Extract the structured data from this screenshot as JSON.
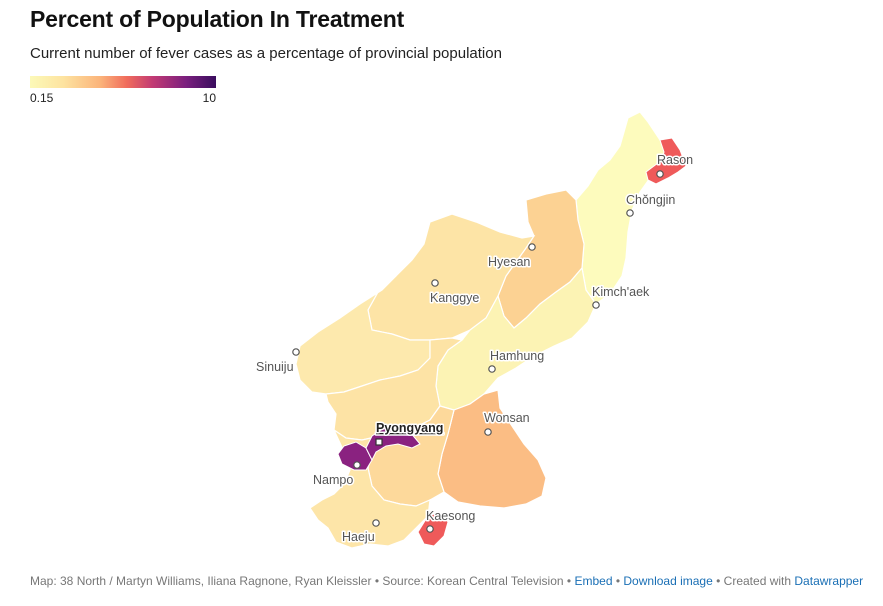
{
  "title": "Percent of Population In Treatment",
  "subtitle": "Current number of fever cases as a percentage of provincial population",
  "legend": {
    "min_label": "0.15",
    "max_label": "10",
    "colors": [
      "#fcf9b8",
      "#fde3a0",
      "#fbb37a",
      "#f06c5c",
      "#c23a74",
      "#7a1f7e",
      "#3a0d5e"
    ]
  },
  "regions": [
    {
      "id": "north-hamgyong",
      "color": "#fdfbbd"
    },
    {
      "id": "ryanggang",
      "color": "#fcd293"
    },
    {
      "id": "chagang",
      "color": "#fde4a6"
    },
    {
      "id": "north-pyongan",
      "color": "#fde9ad"
    },
    {
      "id": "south-hamgyong",
      "color": "#fcf3b4"
    },
    {
      "id": "south-pyongan",
      "color": "#fde3a5"
    },
    {
      "id": "kangwon",
      "color": "#fbbd84"
    },
    {
      "id": "north-hwanghae",
      "color": "#fdd99b"
    },
    {
      "id": "south-hwanghae",
      "color": "#fde5a8"
    },
    {
      "id": "pyongyang",
      "color": "#8a2280"
    },
    {
      "id": "nampo",
      "color": "#8a2280"
    },
    {
      "id": "rason",
      "color": "#ef5a5a"
    },
    {
      "id": "kaesong",
      "color": "#ef5a5a"
    }
  ],
  "cities": [
    {
      "name": "Rason"
    },
    {
      "name": "Chŏngjin"
    },
    {
      "name": "Hyesan"
    },
    {
      "name": "Kanggye"
    },
    {
      "name": "Kimch'aek"
    },
    {
      "name": "Sinuiju"
    },
    {
      "name": "Hamhung"
    },
    {
      "name": "Wonsan"
    },
    {
      "name": "Pyongyang"
    },
    {
      "name": "Nampo"
    },
    {
      "name": "Kaesong"
    },
    {
      "name": "Haeju"
    }
  ],
  "footer": {
    "map_credit": "Map: 38 North / Martyn Williams, Iliana Ragnone, Ryan Kleissler",
    "source": "Source: Korean Central Television",
    "embed": "Embed",
    "download": "Download image",
    "created_with": "Created with",
    "datawrapper": "Datawrapper"
  }
}
